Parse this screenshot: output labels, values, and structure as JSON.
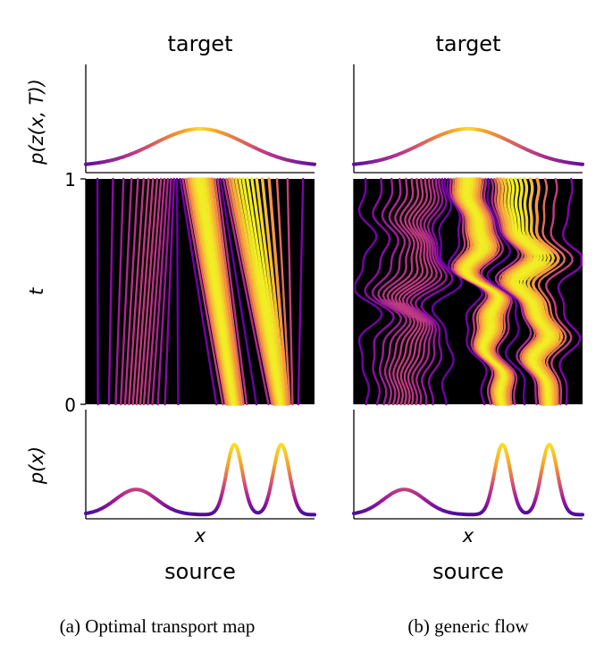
{
  "figure": {
    "subfigures": [
      {
        "top_title": "target",
        "bottom_title": "source",
        "caption": "(a) Optimal transport map",
        "chart_data": {
          "type": "line",
          "panels": [
            {
              "id": "target-density",
              "ylabel": "p(z(x, T))",
              "description": "unimodal density, color mapped by value"
            },
            {
              "id": "trajectories",
              "ylabel": "t",
              "ytick_labels": [
                "0",
                "1"
              ],
              "ylim": [
                0,
                1
              ],
              "style": "straight lines (optimal transport)",
              "background": "#000000"
            },
            {
              "id": "source-density",
              "ylabel": "p(x)",
              "xlabel": "x",
              "description": "trimodal density: broad low bump, two sharp peaks on the right"
            }
          ],
          "colormap": "plasma"
        }
      },
      {
        "top_title": "target",
        "bottom_title": "source",
        "caption": "(b) generic flow",
        "chart_data": {
          "type": "line",
          "panels": [
            {
              "id": "target-density",
              "ylabel": "",
              "description": "unimodal density, color mapped by value"
            },
            {
              "id": "trajectories",
              "ylabel": "",
              "style": "wiggly curved trajectories (generic flow)",
              "background": "#000000"
            },
            {
              "id": "source-density",
              "ylabel": "",
              "xlabel": "x",
              "description": "trimodal density: broad low bump, two sharp peaks on the right"
            }
          ],
          "colormap": "plasma"
        }
      }
    ]
  }
}
